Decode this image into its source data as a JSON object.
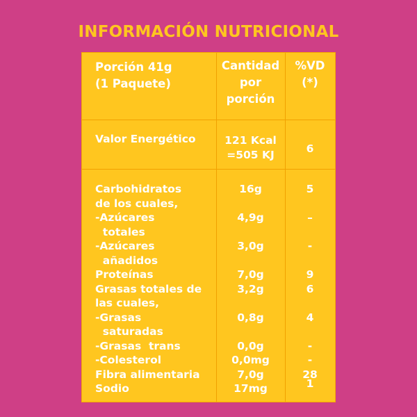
{
  "title": "INFORMACIÓN NUTRICIONAL",
  "header": {
    "portion": "Porción 41g\n(1 Paquete)",
    "amount": "Cantidad\npor\nporción",
    "dv": "%VD\n(*)"
  },
  "energy": {
    "label": "Valor Energético",
    "amount": "121 Kcal\n=505 KJ",
    "dv": "6"
  },
  "nutrients": {
    "labels": "Carbohidratos\nde los cuales,\n-Azúcares\n  totales\n-Azúcares\n  añadidos\nProteínas\nGrasas totales de\nlas cuales,\n-Grasas\n  saturadas\n-Grasas  trans\n-Colesterol\nFibra alimentaria\nSodio",
    "amounts": [
      {
        "name": "carbohidratos",
        "value": "16g"
      },
      {
        "name": "azucares-totales",
        "value": "4,9g"
      },
      {
        "name": "azucares-anadidos",
        "value": "3,0g"
      },
      {
        "name": "proteinas",
        "value": "7,0g"
      },
      {
        "name": "grasas-totales",
        "value": "3,2g"
      },
      {
        "name": "grasas-saturadas",
        "value": "0,8g"
      },
      {
        "name": "grasas-trans",
        "value": "0,0g"
      },
      {
        "name": "colesterol",
        "value": "0,0mg"
      },
      {
        "name": "fibra",
        "value": "7,0g"
      },
      {
        "name": "sodio",
        "value": "17mg"
      }
    ],
    "dvs": [
      {
        "name": "carbohidratos",
        "value": "5"
      },
      {
        "name": "azucares-totales",
        "value": "–"
      },
      {
        "name": "azucares-anadidos",
        "value": "-"
      },
      {
        "name": "proteinas",
        "value": "9"
      },
      {
        "name": "grasas-totales",
        "value": "6"
      },
      {
        "name": "grasas-saturadas",
        "value": "4"
      },
      {
        "name": "grasas-trans",
        "value": "-"
      },
      {
        "name": "colesterol",
        "value": "-"
      },
      {
        "name": "fibra",
        "value": "28"
      },
      {
        "name": "sodio",
        "value": "1"
      }
    ]
  }
}
